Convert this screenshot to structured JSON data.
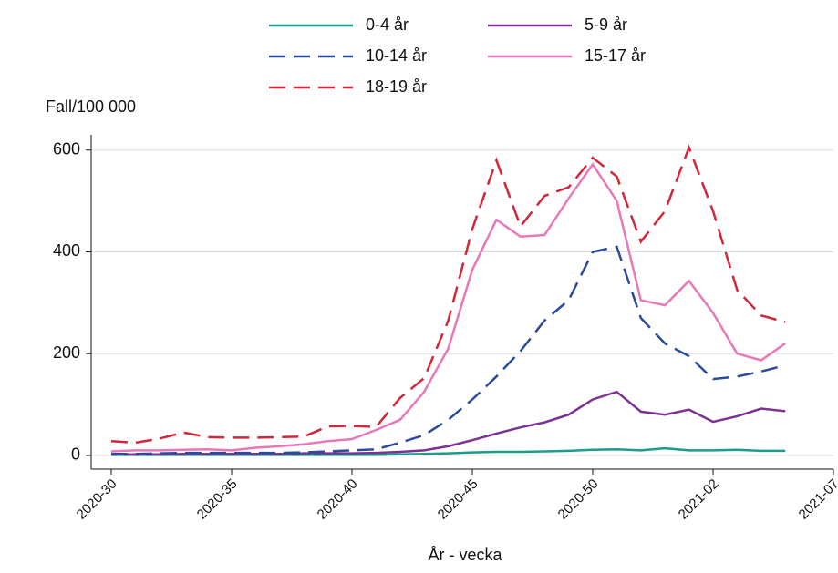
{
  "chart_data": {
    "type": "line",
    "y_label": "Fall/100 000",
    "x_label": "År - vecka",
    "x": [
      "2020-30",
      "2020-31",
      "2020-32",
      "2020-33",
      "2020-34",
      "2020-35",
      "2020-36",
      "2020-37",
      "2020-38",
      "2020-39",
      "2020-40",
      "2020-41",
      "2020-42",
      "2020-43",
      "2020-44",
      "2020-45",
      "2020-46",
      "2020-47",
      "2020-48",
      "2020-49",
      "2020-50",
      "2020-51",
      "2020-52",
      "2020-53",
      "2021-01",
      "2021-02",
      "2021-03",
      "2021-04",
      "2021-05"
    ],
    "xlim": [
      "2020-30",
      "2021-07"
    ],
    "xticks": [
      "2020-30",
      "2020-35",
      "2020-40",
      "2020-45",
      "2020-50",
      "2021-02",
      "2021-07"
    ],
    "ylim": [
      -27,
      630
    ],
    "yticks": [
      0,
      200,
      400,
      600
    ],
    "grid": true,
    "series": [
      {
        "name": "0-4 år",
        "color": "#1a9e8a",
        "dashed": false,
        "values": [
          1,
          1,
          1,
          1,
          1,
          1,
          1,
          1,
          1,
          1,
          1,
          1,
          2,
          3,
          4,
          6,
          7,
          7,
          8,
          9,
          11,
          12,
          10,
          14,
          10,
          10,
          11,
          9,
          9
        ]
      },
      {
        "name": "5-9 år",
        "color": "#7b3294",
        "dashed": false,
        "values": [
          2,
          2,
          2,
          3,
          3,
          3,
          3,
          3,
          4,
          4,
          4,
          5,
          7,
          10,
          18,
          30,
          43,
          55,
          65,
          80,
          110,
          125,
          86,
          80,
          90,
          66,
          77,
          92,
          87
        ]
      },
      {
        "name": "10-14 år",
        "color": "#2b4c9b",
        "dashed": true,
        "values": [
          3,
          3,
          4,
          5,
          5,
          5,
          5,
          5,
          6,
          8,
          10,
          12,
          25,
          40,
          70,
          110,
          155,
          205,
          265,
          305,
          400,
          410,
          270,
          220,
          195,
          150,
          155,
          165,
          177
        ]
      },
      {
        "name": "15-17 år",
        "color": "#e878b8",
        "dashed": false,
        "values": [
          8,
          10,
          10,
          11,
          12,
          10,
          15,
          18,
          22,
          28,
          32,
          50,
          70,
          125,
          210,
          365,
          463,
          430,
          433,
          505,
          572,
          500,
          305,
          295,
          343,
          280,
          200,
          187,
          220
        ]
      },
      {
        "name": "18-19 år",
        "color": "#d1273a",
        "dashed": true,
        "values": [
          28,
          25,
          33,
          45,
          36,
          35,
          35,
          36,
          37,
          57,
          58,
          56,
          113,
          152,
          265,
          445,
          580,
          450,
          510,
          527,
          585,
          548,
          420,
          480,
          605,
          480,
          325,
          275,
          262
        ]
      }
    ]
  }
}
